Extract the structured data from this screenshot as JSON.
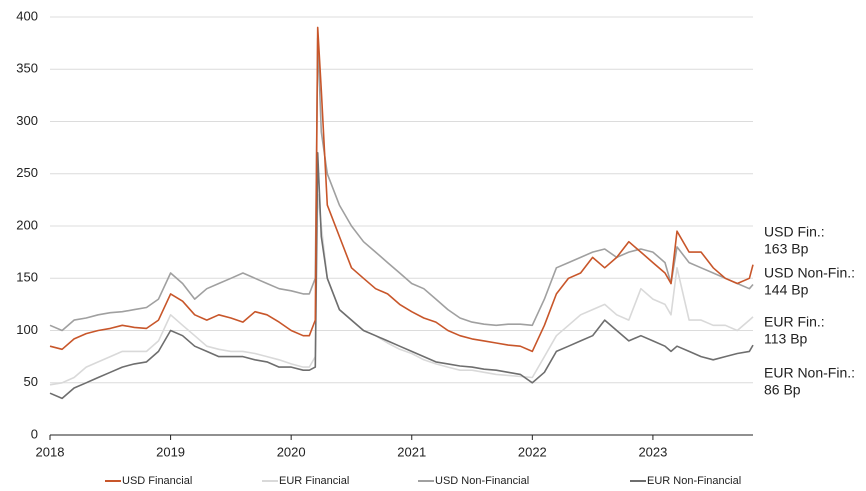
{
  "chart_data": {
    "type": "line",
    "x": [
      2018.0,
      2018.1,
      2018.2,
      2018.3,
      2018.4,
      2018.5,
      2018.6,
      2018.7,
      2018.8,
      2018.9,
      2019.0,
      2019.1,
      2019.2,
      2019.3,
      2019.4,
      2019.5,
      2019.6,
      2019.7,
      2019.8,
      2019.9,
      2020.0,
      2020.1,
      2020.15,
      2020.2,
      2020.22,
      2020.25,
      2020.3,
      2020.4,
      2020.5,
      2020.6,
      2020.7,
      2020.8,
      2020.9,
      2021.0,
      2021.1,
      2021.2,
      2021.3,
      2021.4,
      2021.5,
      2021.6,
      2021.7,
      2021.8,
      2021.9,
      2022.0,
      2022.1,
      2022.2,
      2022.3,
      2022.4,
      2022.5,
      2022.6,
      2022.7,
      2022.8,
      2022.9,
      2023.0,
      2023.1,
      2023.15,
      2023.2,
      2023.3,
      2023.4,
      2023.5,
      2023.6,
      2023.7,
      2023.8,
      2023.83
    ],
    "series": [
      {
        "name": "USD Financial",
        "color": "#c8562a",
        "values": [
          85,
          82,
          92,
          97,
          100,
          102,
          105,
          103,
          102,
          110,
          135,
          128,
          115,
          110,
          115,
          112,
          108,
          118,
          115,
          108,
          100,
          95,
          95,
          110,
          390,
          330,
          220,
          190,
          160,
          150,
          140,
          135,
          125,
          118,
          112,
          108,
          100,
          95,
          92,
          90,
          88,
          86,
          85,
          80,
          105,
          135,
          150,
          155,
          170,
          160,
          170,
          185,
          175,
          165,
          155,
          145,
          195,
          175,
          175,
          160,
          150,
          145,
          150,
          163
        ]
      },
      {
        "name": "EUR Financial",
        "color": "#d9d9d9",
        "values": [
          48,
          50,
          55,
          65,
          70,
          75,
          80,
          80,
          80,
          90,
          115,
          105,
          95,
          85,
          82,
          80,
          80,
          78,
          75,
          72,
          68,
          65,
          65,
          75,
          230,
          200,
          150,
          120,
          110,
          100,
          95,
          88,
          82,
          78,
          72,
          68,
          65,
          62,
          62,
          60,
          58,
          57,
          56,
          55,
          75,
          95,
          105,
          115,
          120,
          125,
          115,
          110,
          140,
          130,
          125,
          115,
          160,
          110,
          110,
          105,
          105,
          100,
          110,
          113
        ]
      },
      {
        "name": "USD Non-Financial",
        "color": "#a0a0a0",
        "values": [
          105,
          100,
          110,
          112,
          115,
          117,
          118,
          120,
          122,
          130,
          155,
          145,
          130,
          140,
          145,
          150,
          155,
          150,
          145,
          140,
          138,
          135,
          135,
          150,
          380,
          290,
          250,
          220,
          200,
          185,
          175,
          165,
          155,
          145,
          140,
          130,
          120,
          112,
          108,
          106,
          105,
          106,
          106,
          105,
          130,
          160,
          165,
          170,
          175,
          178,
          170,
          175,
          178,
          175,
          165,
          145,
          180,
          165,
          160,
          155,
          150,
          145,
          140,
          144
        ]
      },
      {
        "name": "EUR Non-Financial",
        "color": "#6e6e6e",
        "values": [
          40,
          35,
          45,
          50,
          55,
          60,
          65,
          68,
          70,
          80,
          100,
          95,
          85,
          80,
          75,
          75,
          75,
          72,
          70,
          65,
          65,
          62,
          62,
          65,
          270,
          190,
          150,
          120,
          110,
          100,
          95,
          90,
          85,
          80,
          75,
          70,
          68,
          66,
          65,
          63,
          62,
          60,
          58,
          50,
          60,
          80,
          85,
          90,
          95,
          110,
          100,
          90,
          95,
          90,
          85,
          80,
          85,
          80,
          75,
          72,
          75,
          78,
          80,
          86
        ]
      }
    ],
    "xlim": [
      2018,
      2023.83
    ],
    "xticks": [
      2018,
      2019,
      2020,
      2021,
      2022,
      2023
    ],
    "ylim": [
      0,
      400
    ],
    "yticks": [
      0,
      50,
      100,
      150,
      200,
      250,
      300,
      350,
      400
    ],
    "grid": true,
    "annotations": [
      {
        "lines": [
          "USD Fin.:",
          "163 Bp"
        ],
        "color": "#c8562a"
      },
      {
        "lines": [
          "USD Non-Fin.:",
          "144 Bp"
        ],
        "color": "#999999"
      },
      {
        "lines": [
          "EUR Fin.:",
          "113 Bp"
        ],
        "color": "#d4d4d4"
      },
      {
        "lines": [
          "EUR Non-Fin.:",
          "86 Bp"
        ],
        "color": "#6e6e6e"
      }
    ]
  }
}
